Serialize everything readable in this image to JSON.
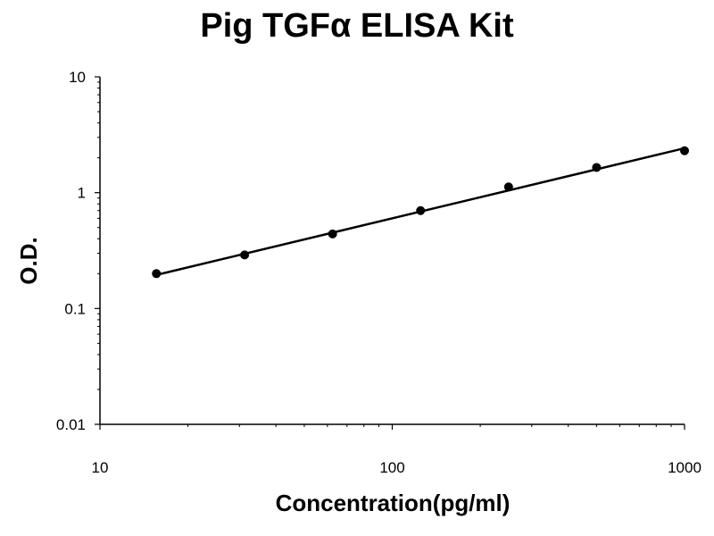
{
  "chart_data": {
    "type": "scatter",
    "title": "Pig TGFα ELISA Kit",
    "xlabel": "Concentration(pg/ml)",
    "ylabel": "O.D.",
    "x_scale": "log",
    "y_scale": "log",
    "xlim": [
      10,
      1000
    ],
    "ylim": [
      0.01,
      10
    ],
    "x_ticks": [
      "10",
      "100",
      "1000"
    ],
    "y_ticks": [
      "10",
      "1",
      "0.1",
      "0.01"
    ],
    "grid": false,
    "legend": "none",
    "series": [
      {
        "x": [
          15.6,
          31.25,
          62.5,
          125,
          250,
          500,
          1000
        ],
        "y": [
          0.2,
          0.29,
          0.44,
          0.7,
          1.12,
          1.65,
          2.3
        ]
      }
    ],
    "trendline": {
      "x": [
        15.6,
        1000
      ],
      "y": [
        0.195,
        2.42
      ]
    },
    "colors": {
      "marker": "#000000",
      "line": "#000000",
      "axis": "#000000"
    }
  }
}
